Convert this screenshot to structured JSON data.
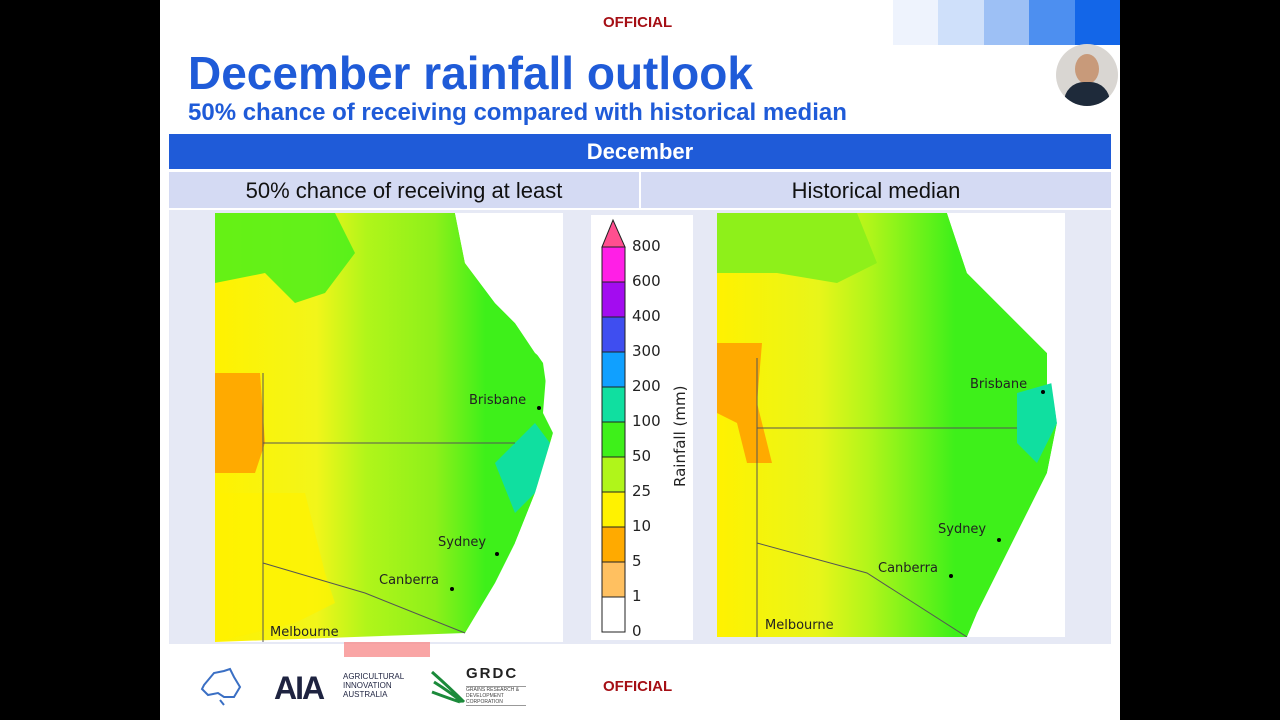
{
  "header": {
    "classification": "OFFICIAL",
    "title": "December rainfall outlook",
    "subtitle": "50% chance of receiving compared with historical median"
  },
  "table": {
    "month": "December",
    "columns": [
      "50% chance of receiving at least",
      "Historical median"
    ]
  },
  "maps": {
    "left_cities": [
      "Brisbane",
      "Sydney",
      "Canberra",
      "Melbourne"
    ],
    "right_cities": [
      "Brisbane",
      "Sydney",
      "Canberra",
      "Melbourne"
    ]
  },
  "legend": {
    "title": "Rainfall (mm)",
    "ticks": [
      "800",
      "600",
      "400",
      "300",
      "200",
      "100",
      "50",
      "25",
      "10",
      "5",
      "1",
      "0"
    ],
    "colors": [
      "#ff4f8f",
      "#ff1fe6",
      "#a30cf0",
      "#3f4ef0",
      "#10a0ff",
      "#10dfa0",
      "#3ef01a",
      "#b0f51a",
      "#fff200",
      "#ffaa00",
      "#ffc060",
      "#ffffff"
    ]
  },
  "footer": {
    "classification": "OFFICIAL",
    "logos": [
      "AGRICULTURAL INNOVATION AUSTRALIA",
      "GRDC",
      "GRAINS RESEARCH & DEVELOPMENT CORPORATION"
    ],
    "aia": "AIA"
  },
  "accent": "#1f5bd8"
}
